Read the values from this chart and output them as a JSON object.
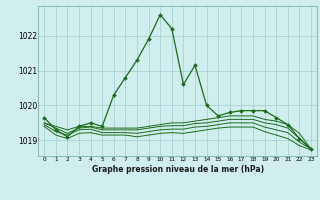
{
  "title": "Graphe pression niveau de la mer (hPa)",
  "x_labels": [
    "0",
    "1",
    "2",
    "3",
    "4",
    "5",
    "6",
    "7",
    "8",
    "9",
    "10",
    "11",
    "12",
    "13",
    "14",
    "15",
    "16",
    "17",
    "18",
    "19",
    "20",
    "21",
    "22",
    "23"
  ],
  "ylim": [
    1018.55,
    1022.85
  ],
  "yticks": [
    1019,
    1020,
    1021,
    1022
  ],
  "bg_color": "#d1eeee",
  "grid_color": "#a0cccc",
  "line_color": "#1a6b1a",
  "series": [
    [
      1019.65,
      1019.3,
      1019.1,
      1019.4,
      1019.5,
      1019.4,
      1020.3,
      1020.8,
      1021.3,
      1021.9,
      1022.6,
      1022.2,
      1020.6,
      1021.15,
      1020.0,
      1019.7,
      1019.8,
      1019.85,
      1019.85,
      1019.85,
      1019.65,
      1019.45,
      1019.05,
      1018.75
    ],
    [
      1019.5,
      1019.4,
      1019.3,
      1019.4,
      1019.4,
      1019.35,
      1019.35,
      1019.35,
      1019.35,
      1019.4,
      1019.45,
      1019.5,
      1019.5,
      1019.55,
      1019.6,
      1019.65,
      1019.7,
      1019.7,
      1019.7,
      1019.6,
      1019.55,
      1019.45,
      1019.2,
      1018.75
    ],
    [
      1019.5,
      1019.35,
      1019.2,
      1019.35,
      1019.38,
      1019.3,
      1019.3,
      1019.3,
      1019.3,
      1019.35,
      1019.4,
      1019.42,
      1019.42,
      1019.48,
      1019.5,
      1019.55,
      1019.6,
      1019.6,
      1019.6,
      1019.5,
      1019.45,
      1019.35,
      1019.05,
      1018.75
    ],
    [
      1019.45,
      1019.25,
      1019.15,
      1019.3,
      1019.32,
      1019.22,
      1019.22,
      1019.22,
      1019.2,
      1019.25,
      1019.3,
      1019.32,
      1019.32,
      1019.38,
      1019.4,
      1019.45,
      1019.5,
      1019.5,
      1019.5,
      1019.38,
      1019.3,
      1019.22,
      1018.95,
      1018.75
    ],
    [
      1019.4,
      1019.15,
      1019.05,
      1019.2,
      1019.22,
      1019.15,
      1019.15,
      1019.15,
      1019.1,
      1019.15,
      1019.2,
      1019.22,
      1019.2,
      1019.25,
      1019.3,
      1019.35,
      1019.38,
      1019.38,
      1019.38,
      1019.25,
      1019.15,
      1019.05,
      1018.85,
      1018.72
    ]
  ]
}
